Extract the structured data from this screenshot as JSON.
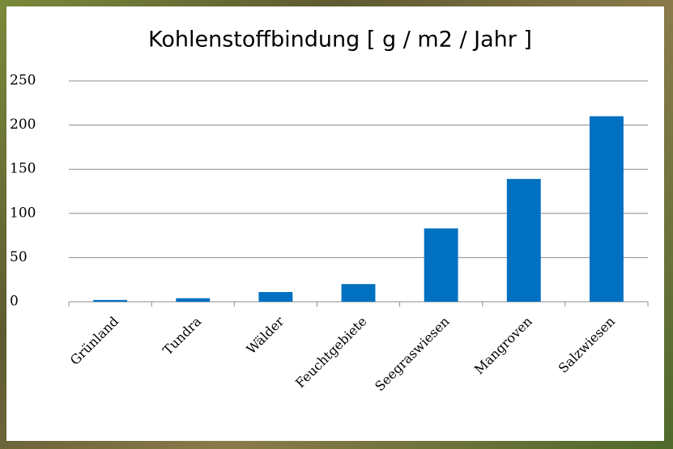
{
  "chart_data": {
    "type": "bar",
    "title": "Kohlenstoffbindung [ g / m2 / Jahr ]",
    "categories": [
      "Grünland",
      "Tundra",
      "Wälder",
      "Feuchtgebiete",
      "Seegraswiesen",
      "Mangroven",
      "Salzwiesen"
    ],
    "values": [
      2,
      4,
      11,
      20,
      83,
      139,
      210
    ],
    "color": "#0070c0",
    "ylim": [
      0,
      250
    ],
    "yticks": [
      0,
      50,
      100,
      150,
      200,
      250
    ],
    "grid": true
  }
}
